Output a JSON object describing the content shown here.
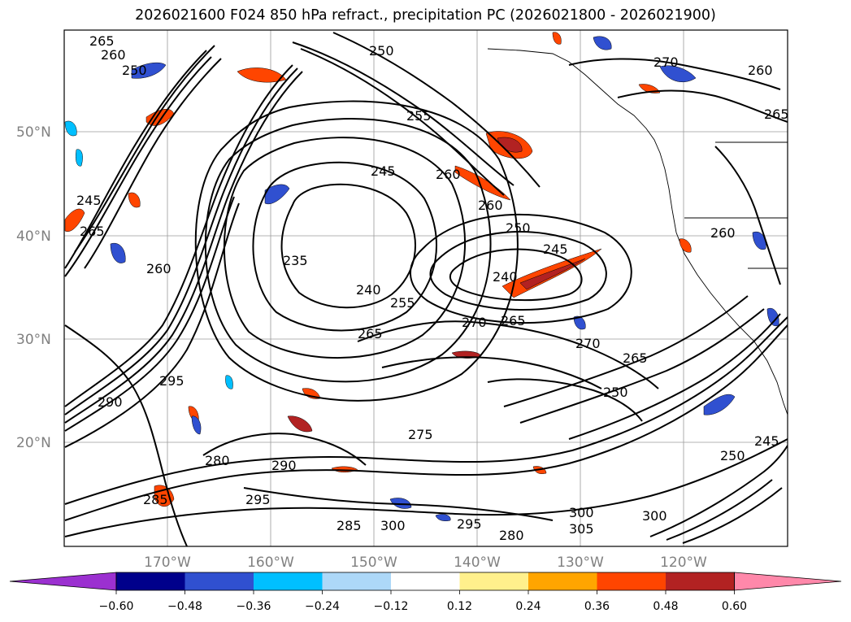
{
  "title": "2026021600 F024 850 hPa refract., precipitation PC (2026021800 - 2026021900)",
  "map": {
    "lat_labels": [
      "50°N",
      "40°N",
      "30°N",
      "20°N"
    ],
    "lon_labels": [
      "170°W",
      "160°W",
      "150°W",
      "140°W",
      "130°W",
      "120°W"
    ],
    "contour_labels": [
      "265",
      "260",
      "250",
      "245",
      "265",
      "260",
      "250",
      "255",
      "245",
      "260",
      "260",
      "250",
      "245",
      "240",
      "235",
      "240",
      "255",
      "265",
      "270",
      "265",
      "270",
      "265",
      "250",
      "295",
      "290",
      "275",
      "290",
      "295",
      "285",
      "280",
      "295",
      "300",
      "285",
      "280",
      "300",
      "305",
      "300",
      "250",
      "245",
      "270",
      "260",
      "265",
      "260"
    ]
  },
  "colorbar": {
    "colors": [
      "#9b30d0",
      "#00008b",
      "#3050d0",
      "#00bfff",
      "#add8f8",
      "#ffffff",
      "#fff08c",
      "#ffa500",
      "#ff4500",
      "#b22222",
      "#ff88aa"
    ],
    "tick_labels": [
      "−0.60",
      "−0.48",
      "−0.36",
      "−0.24",
      "−0.12",
      "0.12",
      "0.24",
      "0.36",
      "0.48",
      "0.60"
    ]
  }
}
